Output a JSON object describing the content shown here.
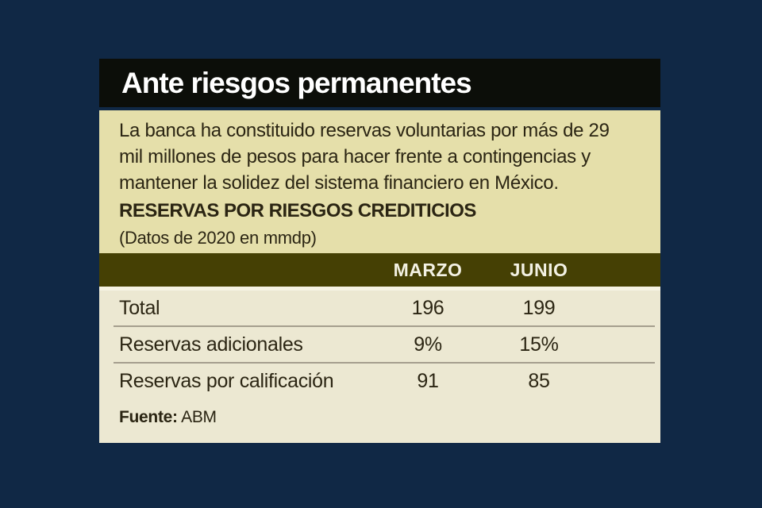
{
  "colors": {
    "background": "#102845",
    "header_bar": "#0c0e09",
    "header_text": "#ffffff",
    "intro_bg": "#e5dfaa",
    "table_bg": "#ece8d2",
    "table_header_bg": "#454004",
    "table_header_text": "#f3f1e3",
    "body_text": "#2b2513",
    "separator": "#a59e8e"
  },
  "header": {
    "title": "Ante riesgos permanentes"
  },
  "intro": {
    "lines": [
      "La banca ha constituido reservas voluntarias por más de 29",
      "mil millones de pesos para hacer frente a contingencias y",
      "mantener la solidez del sistema financiero en México."
    ],
    "subtitle": "RESERVAS POR RIESGOS CREDITICIOS",
    "note": "(Datos de 2020 en mmdp)"
  },
  "table": {
    "columns": [
      "MARZO",
      "JUNIO"
    ],
    "rows": [
      {
        "label": "Total",
        "marzo": "196",
        "junio": "199"
      },
      {
        "label": "Reservas adicionales",
        "marzo": "9%",
        "junio": "15%"
      },
      {
        "label": "Reservas por calificación",
        "marzo": "91",
        "junio": "85"
      }
    ]
  },
  "source": {
    "label": "Fuente:",
    "value": " ABM"
  },
  "chart_data": {
    "type": "table",
    "title": "Ante riesgos permanentes",
    "subtitle": "RESERVAS POR RIESGOS CREDITICIOS",
    "unit_note": "(Datos de 2020 en mmdp)",
    "categories": [
      "MARZO",
      "JUNIO"
    ],
    "series": [
      {
        "name": "Total",
        "values": [
          196,
          199
        ]
      },
      {
        "name": "Reservas adicionales",
        "values": [
          "9%",
          "15%"
        ]
      },
      {
        "name": "Reservas por calificación",
        "values": [
          91,
          85
        ]
      }
    ],
    "source": "Fuente: ABM"
  }
}
